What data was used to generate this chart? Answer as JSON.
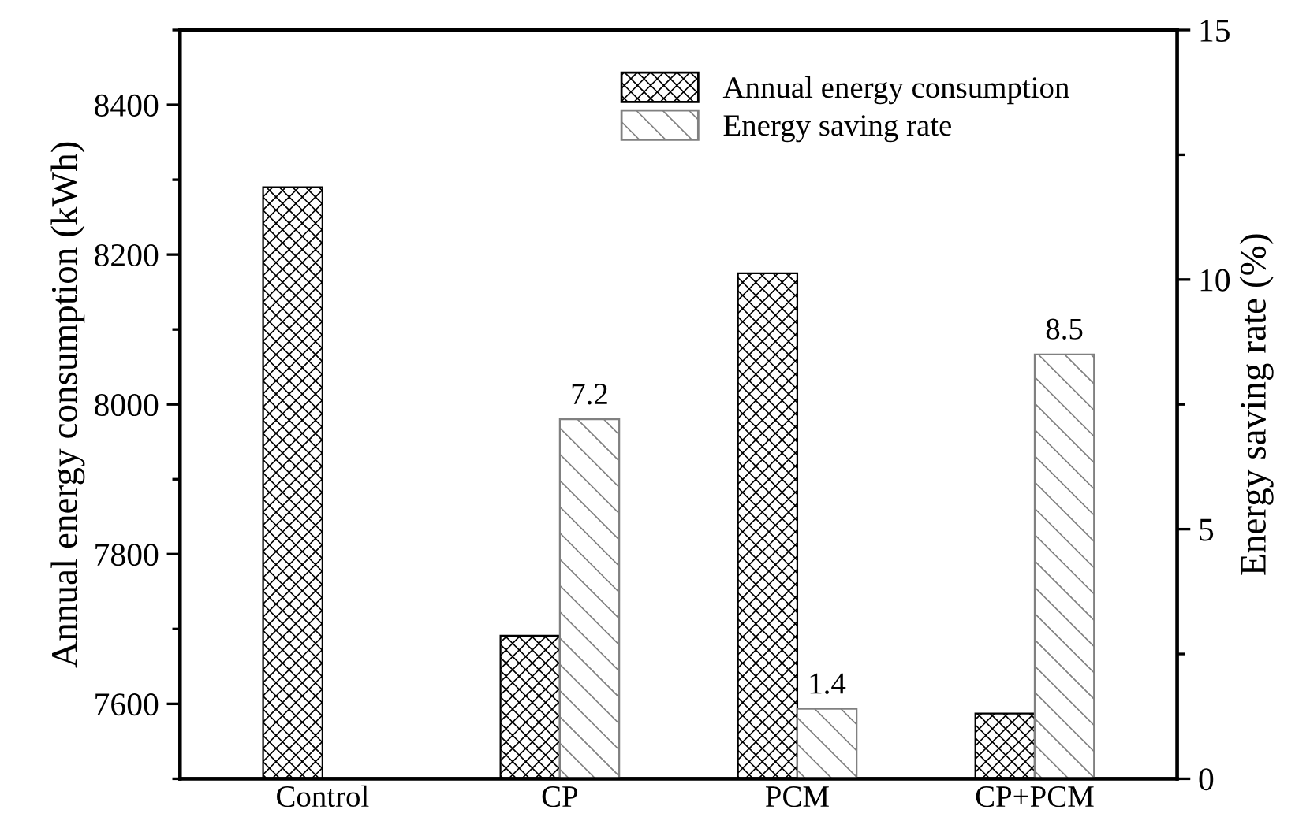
{
  "chart_data": {
    "type": "bar",
    "categories": [
      "Control",
      "CP",
      "PCM",
      "CP+PCM"
    ],
    "ylabel": "Annual energy consumption (kWh)",
    "y2label": "Energy saving rate (%)",
    "series": [
      {
        "name": "Annual energy consumption",
        "color": "#000000",
        "values": [
          8290,
          7691,
          8175,
          7587
        ]
      },
      {
        "name": "Energy saving rate",
        "color": "#808080",
        "axis": "y2",
        "values": [
          null,
          7.2,
          1.4,
          8.5
        ],
        "value_labels": [
          null,
          "7.2",
          "1.4",
          "8.5"
        ]
      }
    ],
    "ylim": [
      7500,
      8500
    ],
    "yticks": [
      {
        "value": 7500,
        "label": null
      },
      7600,
      {
        "value": 7700,
        "label": null
      },
      7800,
      {
        "value": 7900,
        "label": null
      },
      8000,
      {
        "value": 8100,
        "label": null
      },
      8200,
      {
        "value": 8300,
        "label": null
      },
      8400,
      {
        "value": 8500,
        "label": null
      }
    ],
    "y2lim": [
      0,
      15
    ],
    "y2ticks": [
      0,
      {
        "value": 2.5,
        "label": null
      },
      5,
      {
        "value": 7.5,
        "label": null
      },
      10,
      {
        "value": 12.5,
        "label": null
      },
      15
    ],
    "legend": "top right",
    "grid": false
  }
}
